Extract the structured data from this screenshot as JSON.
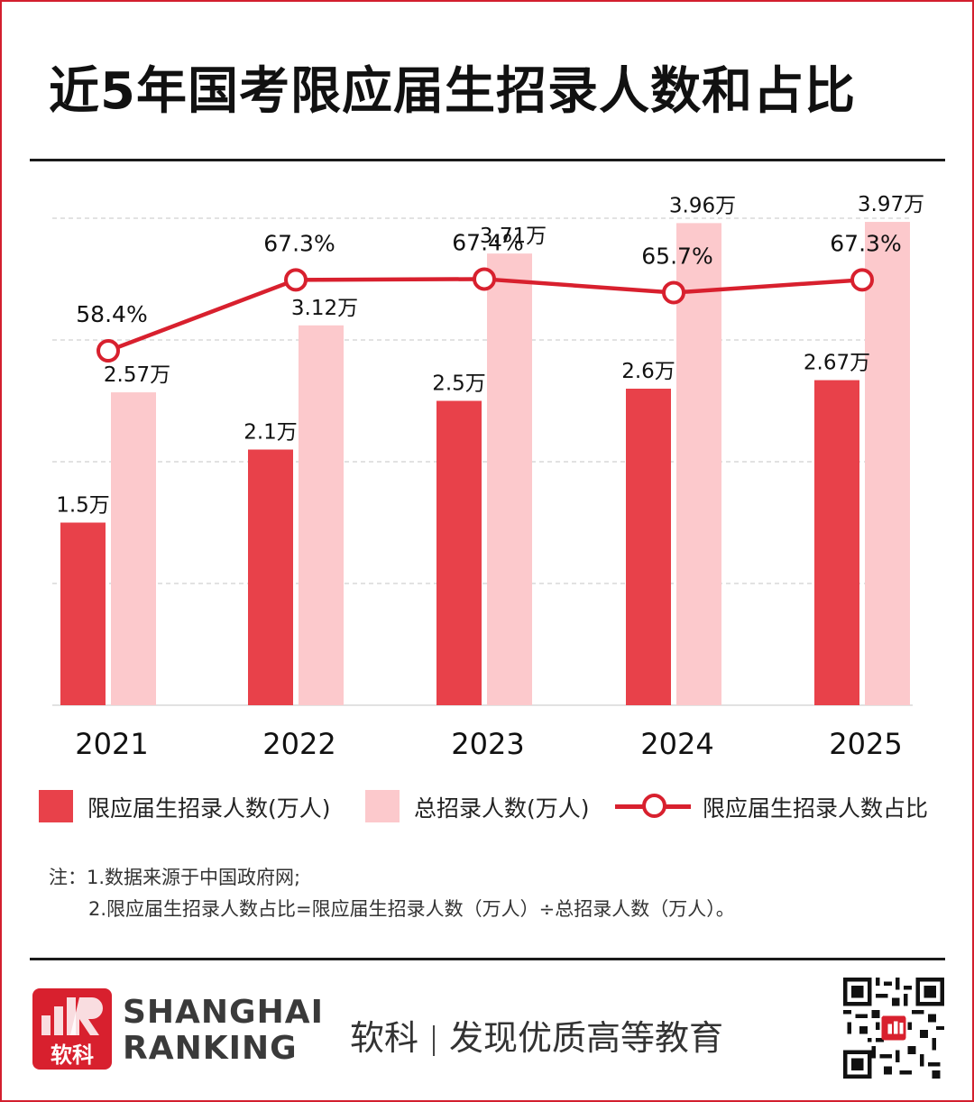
{
  "title": "近5年国考限应届生招录人数和占比",
  "chart_data": {
    "type": "bar",
    "categories": [
      "2021",
      "2022",
      "2023",
      "2024",
      "2025"
    ],
    "series": [
      {
        "name": "限应届生招录人数(万人)",
        "type": "bar",
        "values": [
          1.5,
          2.1,
          2.5,
          2.6,
          2.67
        ],
        "labels": [
          "1.5万",
          "2.1万",
          "2.5万",
          "2.6万",
          "2.67万"
        ],
        "color": "#e8414a"
      },
      {
        "name": "总招录人数(万人)",
        "type": "bar",
        "values": [
          2.57,
          3.12,
          3.71,
          3.96,
          3.97
        ],
        "labels": [
          "2.57万",
          "3.12万",
          "3.71万",
          "3.96万",
          "3.97万"
        ],
        "color": "#fcc9cc"
      },
      {
        "name": "限应届生招录人数占比",
        "type": "line",
        "values": [
          58.4,
          67.3,
          67.4,
          65.7,
          67.3
        ],
        "labels": [
          "58.4%",
          "67.3%",
          "67.4%",
          "65.7%",
          "67.3%"
        ],
        "color": "#d8202e"
      }
    ],
    "ylim": [
      0,
      4
    ],
    "grid": true,
    "legend_position": "bottom"
  },
  "notes": {
    "line1": "注：1.数据来源于中国政府网;",
    "line2": "2.限应届生招录人数占比=限应届生招录人数（万人）÷总招录人数（万人）。"
  },
  "footer": {
    "logo_cn": "软科",
    "logo_en_line1": "SHANGHAI",
    "logo_en_line2": "RANKING",
    "slogan_left": "软科",
    "slogan_right": "发现优质高等教育"
  },
  "colors": {
    "accent": "#d8202e",
    "bar_primary": "#e8414a",
    "bar_secondary": "#fcc9cc"
  }
}
